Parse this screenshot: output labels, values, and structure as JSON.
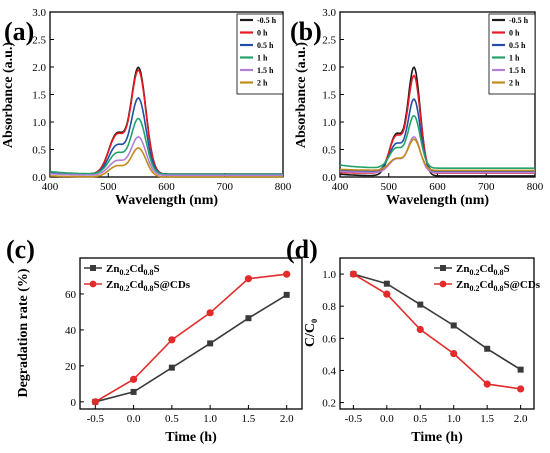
{
  "colors": {
    "black": "#1a1a1a",
    "red": "#e8191f",
    "blue": "#1f4fa8",
    "green": "#23a36b",
    "violet": "#b27fd6",
    "gold": "#c28a1c",
    "cd_black": "#3a3a3a",
    "cd_red": "#e22b2b"
  },
  "chart_data": [
    {
      "id": "a",
      "panel_label": "(a)",
      "type": "line",
      "xlabel": "Wavelength (nm)",
      "ylabel": "Absorbance (a.u.)",
      "xlim": [
        400,
        800
      ],
      "ylim": [
        0,
        3.0
      ],
      "xticks": [
        "400",
        "500",
        "600",
        "700",
        "800"
      ],
      "yticks": [
        "0.0",
        "0.5",
        "1.0",
        "1.5",
        "2.0",
        "2.5",
        "3.0"
      ],
      "legend_position": "top-right",
      "series": [
        {
          "name": "-0.5 h",
          "color": "black",
          "peak": 1.97,
          "baseline": 0.05,
          "start": 0.08
        },
        {
          "name": "0 h",
          "color": "red",
          "peak": 1.92,
          "baseline": 0.05,
          "start": 0.08
        },
        {
          "name": "0.5 h",
          "color": "blue",
          "peak": 1.42,
          "baseline": 0.05,
          "start": 0.08
        },
        {
          "name": "1 h",
          "color": "green",
          "peak": 1.05,
          "baseline": 0.05,
          "start": 0.1
        },
        {
          "name": "1.5 h",
          "color": "violet",
          "peak": 0.72,
          "baseline": 0.03,
          "start": 0.06
        },
        {
          "name": "2 h",
          "color": "gold",
          "peak": 0.52,
          "baseline": 0.0,
          "start": 0.02
        }
      ]
    },
    {
      "id": "b",
      "panel_label": "(b)",
      "type": "line",
      "xlabel": "Wavelength (nm)",
      "ylabel": "Absorbance (a.u.)",
      "xlim": [
        400,
        800
      ],
      "ylim": [
        0,
        3.0
      ],
      "xticks": [
        "400",
        "500",
        "600",
        "700",
        "800"
      ],
      "yticks": [
        "0.0",
        "0.5",
        "1.0",
        "1.5",
        "2.0",
        "2.5",
        "3.0"
      ],
      "legend_position": "top-right",
      "series": [
        {
          "name": "-0.5 h",
          "color": "black",
          "peak": 1.97,
          "baseline": 0.02,
          "start": 0.05
        },
        {
          "name": "0 h",
          "color": "red",
          "peak": 1.82,
          "baseline": 0.07,
          "start": 0.08
        },
        {
          "name": "0.5 h",
          "color": "blue",
          "peak": 1.4,
          "baseline": 0.1,
          "start": 0.12
        },
        {
          "name": "1 h",
          "color": "green",
          "peak": 1.1,
          "baseline": 0.16,
          "start": 0.22
        },
        {
          "name": "1.5 h",
          "color": "violet",
          "peak": 0.72,
          "baseline": 0.08,
          "start": 0.1
        },
        {
          "name": "2 h",
          "color": "gold",
          "peak": 0.68,
          "baseline": 0.12,
          "start": 0.14
        }
      ]
    },
    {
      "id": "c",
      "panel_label": "(c)",
      "type": "line",
      "xlabel": "Time (h)",
      "ylabel": "Degradation rate (%)",
      "x": [
        -0.5,
        0,
        0.5,
        1.0,
        1.5,
        2.0
      ],
      "xlim": [
        -0.7,
        2.2
      ],
      "ylim": [
        -4,
        80
      ],
      "xticks": [
        "-0.5",
        "0.0",
        "0.5",
        "1.0",
        "1.5",
        "2.0"
      ],
      "xtick_values": [
        -0.5,
        0,
        0.5,
        1.0,
        1.5,
        2.0
      ],
      "yticks": [
        "0",
        "20",
        "40",
        "60"
      ],
      "ytick_values": [
        0,
        20,
        40,
        60
      ],
      "legend_position": "top-left",
      "series": [
        {
          "base": "Zn",
          "sub1": "0.2",
          "mid": "Cd",
          "sub2": "0.8",
          "tail": "S",
          "marker": "square",
          "color": "cd_black",
          "values": [
            0,
            5.5,
            19,
            32.5,
            46.5,
            59.5
          ]
        },
        {
          "base": "Zn",
          "sub1": "0.2",
          "mid": "Cd",
          "sub2": "0.8",
          "tail": "S@CDs",
          "marker": "circle",
          "color": "cd_red",
          "values": [
            0,
            12.5,
            34.5,
            49.5,
            68.5,
            71
          ]
        }
      ]
    },
    {
      "id": "d",
      "panel_label": "(d)",
      "type": "line",
      "xlabel": "Time (h)",
      "ylabel": "C/C₀",
      "x": [
        -0.5,
        0,
        0.5,
        1.0,
        1.5,
        2.0
      ],
      "xlim": [
        -0.7,
        2.2
      ],
      "ylim": [
        0.16,
        1.1
      ],
      "xticks": [
        "-0.5",
        "0.0",
        "0.5",
        "1.0",
        "1.5",
        "2.0"
      ],
      "xtick_values": [
        -0.5,
        0,
        0.5,
        1.0,
        1.5,
        2.0
      ],
      "yticks": [
        "0.2",
        "0.4",
        "0.6",
        "0.8",
        "1.0"
      ],
      "ytick_values": [
        0.2,
        0.4,
        0.6,
        0.8,
        1.0
      ],
      "legend_position": "top-right",
      "series": [
        {
          "base": "Zn",
          "sub1": "0.2",
          "mid": "Cd",
          "sub2": "0.8",
          "tail": "S",
          "marker": "square",
          "color": "cd_black",
          "values": [
            1.0,
            0.94,
            0.81,
            0.68,
            0.535,
            0.405
          ]
        },
        {
          "base": "Zn",
          "sub1": "0.2",
          "mid": "Cd",
          "sub2": "0.8",
          "tail": "S@CDs",
          "marker": "circle",
          "color": "cd_red",
          "values": [
            1.0,
            0.875,
            0.655,
            0.505,
            0.315,
            0.285
          ]
        }
      ]
    }
  ]
}
